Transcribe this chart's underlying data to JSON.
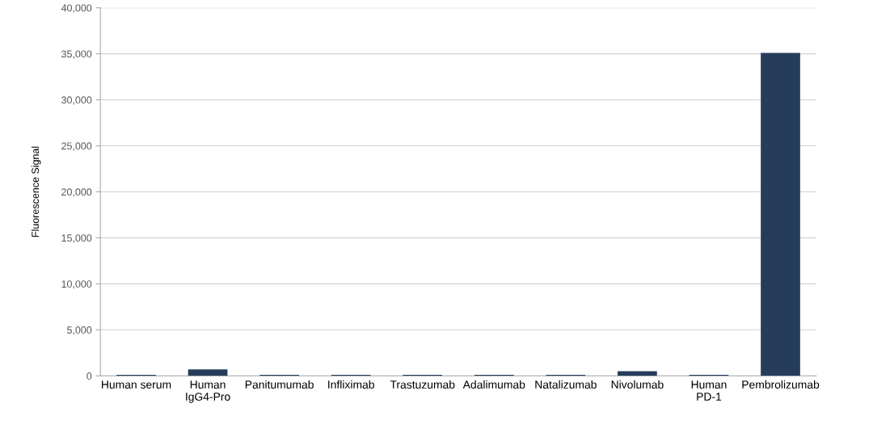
{
  "chart_data": {
    "type": "bar",
    "ylabel": "Fluorescence Signal",
    "categories": [
      "Human serum",
      "Human\nIgG4-Pro",
      "Panitumumab",
      "Infliximab",
      "Trastuzumab",
      "Adalimumab",
      "Natalizumab",
      "Nivolumab",
      "Human\nPD-1",
      "Pembrolizumab"
    ],
    "values": [
      100,
      700,
      100,
      100,
      100,
      100,
      100,
      500,
      100,
      35100
    ],
    "color": "#253d5b",
    "ylim": [
      0,
      40000
    ],
    "yticks": [
      {
        "value": 0,
        "label": "0"
      },
      {
        "value": 5000,
        "label": "5,000"
      },
      {
        "value": 10000,
        "label": "10,000"
      },
      {
        "value": 15000,
        "label": "15,000"
      },
      {
        "value": 20000,
        "label": "20,000"
      },
      {
        "value": 25000,
        "label": "25,000"
      },
      {
        "value": 30000,
        "label": "30,000"
      },
      {
        "value": 35000,
        "label": "35,000"
      },
      {
        "value": 40000,
        "label": "40,000"
      }
    ],
    "grid": "y",
    "legend": false
  }
}
